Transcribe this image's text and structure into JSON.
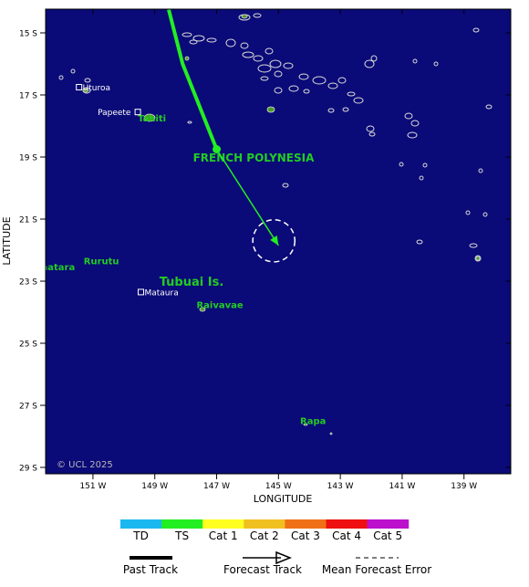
{
  "map": {
    "background_color": "#0a0a78",
    "land_outline_color": "#d8d8d8",
    "land_fill_color": "#4a9a2a",
    "copyright": "© UCL 2025",
    "region_labels": {
      "french_polynesia": "FRENCH POLYNESIA",
      "tubuai": "Tubuai Is."
    },
    "islands": [
      {
        "name": "Tahiti",
        "lon": -149.55,
        "lat": -17.85,
        "color": "#22cc22"
      },
      {
        "name": "Rurutu",
        "lon": -151.3,
        "lat": -22.45,
        "color": "#22cc22"
      },
      {
        "name": "Rimatara",
        "lon": -153.1,
        "lat": -22.65,
        "color": "#22cc22"
      },
      {
        "name": "Raivavae",
        "lon": -147.65,
        "lat": -23.87,
        "color": "#22cc22"
      },
      {
        "name": "Rapa",
        "lon": -144.3,
        "lat": -27.6,
        "color": "#22cc22"
      }
    ],
    "towns": [
      {
        "name": "Uturoa",
        "lon": -151.45,
        "lat": -16.75,
        "color": "#ffffff"
      },
      {
        "name": "Papeete",
        "lon": -149.55,
        "lat": -17.55,
        "color": "#ffffff"
      },
      {
        "name": "Mataura",
        "lon": -149.45,
        "lat": -23.35,
        "color": "#ffffff"
      }
    ]
  },
  "axes": {
    "x_title": "LONGITUDE",
    "y_title": "LATITUDE",
    "lon_ticks": [
      {
        "value": -151,
        "label": "151 W"
      },
      {
        "value": -149,
        "label": "149 W"
      },
      {
        "value": -147,
        "label": "147 W"
      },
      {
        "value": -145,
        "label": "145 W"
      },
      {
        "value": -143,
        "label": "143 W"
      },
      {
        "value": -141,
        "label": "141 W"
      },
      {
        "value": -139,
        "label": "139 W"
      }
    ],
    "lat_ticks": [
      {
        "value": -15,
        "label": "15 S"
      },
      {
        "value": -17,
        "label": "17 S"
      },
      {
        "value": -19,
        "label": "19 S"
      },
      {
        "value": -21,
        "label": "21 S"
      },
      {
        "value": -23,
        "label": "23 S"
      },
      {
        "value": -25,
        "label": "25 S"
      },
      {
        "value": -27,
        "label": "27 S"
      },
      {
        "value": -29,
        "label": "29 S"
      }
    ]
  },
  "storm": {
    "track_color": "#22ee22",
    "past_track": [
      {
        "lon": -148.55,
        "lat": -14.25
      },
      {
        "lon": -148.1,
        "lat": -16.0
      },
      {
        "lon": -147.0,
        "lat": -18.75
      }
    ],
    "current_position": {
      "lon": -147.0,
      "lat": -18.75
    },
    "forecast_track": [
      {
        "lon": -147.0,
        "lat": -18.75
      },
      {
        "lon": -145.0,
        "lat": -21.85
      }
    ],
    "forecast_error_circle_center": {
      "lon": -145.15,
      "lat": -21.7
    },
    "forecast_error_radius_deg": 0.68
  },
  "legend": {
    "categories": [
      {
        "label": "TD",
        "color": "#1ab8f0"
      },
      {
        "label": "TS",
        "color": "#22ee22"
      },
      {
        "label": "Cat 1",
        "color": "#ffff22"
      },
      {
        "label": "Cat 2",
        "color": "#f0c020"
      },
      {
        "label": "Cat 3",
        "color": "#f07018"
      },
      {
        "label": "Cat 4",
        "color": "#ee1010"
      },
      {
        "label": "Cat 5",
        "color": "#bb10cc"
      }
    ],
    "past_track_label": "Past Track",
    "forecast_track_label": "Forecast Track",
    "mean_error_label": "Mean Forecast Error"
  }
}
